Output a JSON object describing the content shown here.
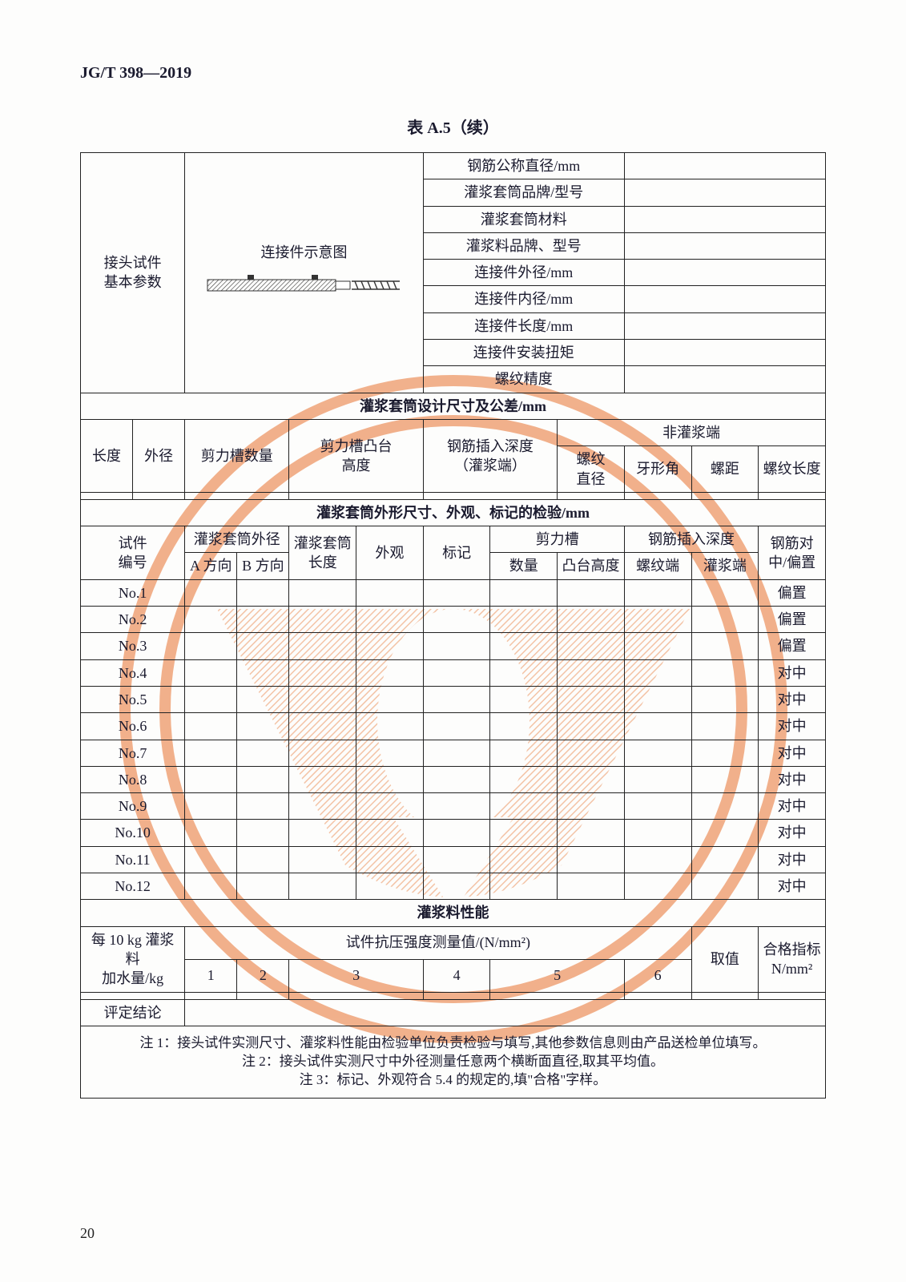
{
  "doc_code": "JG/T 398—2019",
  "table_caption": "表 A.5（续）",
  "page_number": "20",
  "basic_params": {
    "row_label_l1": "接头试件",
    "row_label_l2": "基本参数",
    "schematic_caption": "连接件示意图",
    "right_labels": [
      "钢筋公称直径/mm",
      "灌浆套筒品牌/型号",
      "灌浆套筒材料",
      "灌浆料品牌、型号",
      "连接件外径/mm",
      "连接件内径/mm",
      "连接件长度/mm",
      "连接件安装扭矩",
      "螺纹精度"
    ]
  },
  "design_dims": {
    "section_title": "灌浆套筒设计尺寸及公差/mm",
    "cols": {
      "length": "长度",
      "outer_dia": "外径",
      "shear_groove_count": "剪力槽数量",
      "shear_boss_height_l1": "剪力槽凸台",
      "shear_boss_height_l2": "高度",
      "insert_depth_l1": "钢筋插入深度",
      "insert_depth_l2": "（灌浆端）",
      "non_grout_end": "非灌浆端",
      "thread_dia_l1": "螺纹",
      "thread_dia_l2": "直径",
      "tooth_angle": "牙形角",
      "pitch": "螺距",
      "thread_len": "螺纹长度"
    }
  },
  "inspection": {
    "section_title": "灌浆套筒外形尺寸、外观、标记的检验/mm",
    "cols": {
      "specimen_no_l1": "试件",
      "specimen_no_l2": "编号",
      "outer_dia_group": "灌浆套筒外径",
      "a_dir": "A 方向",
      "b_dir": "B 方向",
      "sleeve_len_l1": "灌浆套筒",
      "sleeve_len_l2": "长度",
      "appearance": "外观",
      "marking": "标记",
      "shear_groove_group": "剪力槽",
      "count": "数量",
      "boss_height": "凸台高度",
      "insert_depth_group": "钢筋插入深度",
      "thread_end": "螺纹端",
      "grout_end": "灌浆端",
      "rebar_align_l1": "钢筋对",
      "rebar_align_l2": "中/偏置"
    },
    "rows": [
      {
        "no": "No.1",
        "align": "偏置"
      },
      {
        "no": "No.2",
        "align": "偏置"
      },
      {
        "no": "No.3",
        "align": "偏置"
      },
      {
        "no": "No.4",
        "align": "对中"
      },
      {
        "no": "No.5",
        "align": "对中"
      },
      {
        "no": "No.6",
        "align": "对中"
      },
      {
        "no": "No.7",
        "align": "对中"
      },
      {
        "no": "No.8",
        "align": "对中"
      },
      {
        "no": "No.9",
        "align": "对中"
      },
      {
        "no": "No.10",
        "align": "对中"
      },
      {
        "no": "No.11",
        "align": "对中"
      },
      {
        "no": "No.12",
        "align": "对中"
      }
    ]
  },
  "grout_perf": {
    "section_title": "灌浆料性能",
    "water_label_l1": "每 10 kg 灌浆料",
    "water_label_l2": "加水量/kg",
    "strength_header": "试件抗压强度测量值/(N/mm²)",
    "cols": [
      "1",
      "2",
      "3",
      "4",
      "5",
      "6"
    ],
    "value_label": "取值",
    "pass_label_l1": "合格指标",
    "pass_label_l2": "N/mm²",
    "conclusion_label": "评定结论"
  },
  "notes": {
    "n1": "注 1：接头试件实测尺寸、灌浆料性能由检验单位负责检验与填写,其他参数信息则由产品送检单位填写。",
    "n2": "注 2：接头试件实测尺寸中外径测量任意两个横断面直径,取其平均值。",
    "n3": "注 3：标记、外观符合 5.4 的规定的,填\"合格\"字样。"
  },
  "watermark": {
    "stroke": "#e8732f",
    "fill_hatch": "#ea8a4f",
    "opacity": 0.55
  }
}
